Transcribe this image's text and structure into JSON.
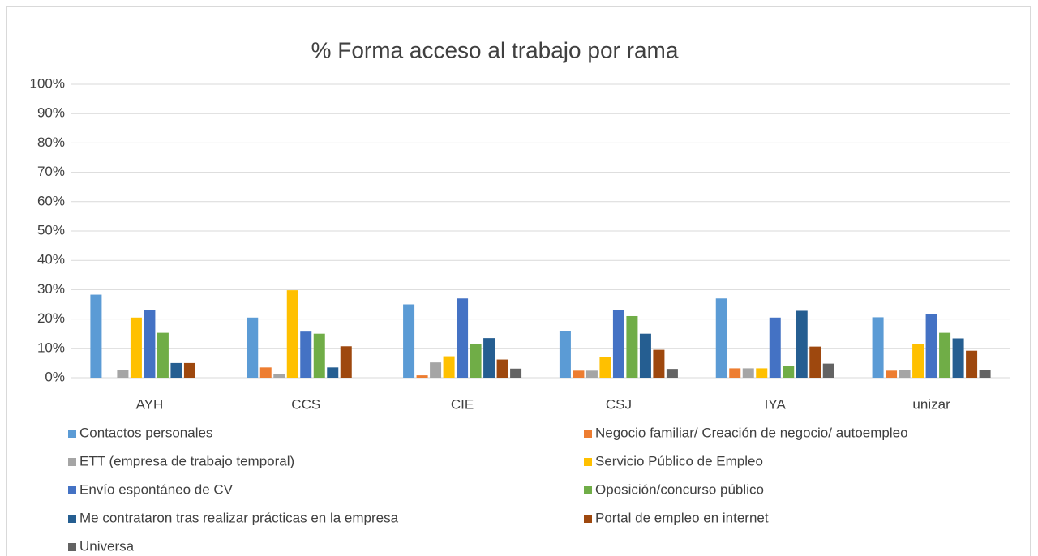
{
  "chart_data": {
    "type": "bar",
    "title": "% Forma acceso al trabajo por rama",
    "categories": [
      "AYH",
      "CCS",
      "CIE",
      "CSJ",
      "IYA",
      "unizar"
    ],
    "series": [
      {
        "name": "Contactos personales",
        "color": "#5b9bd5",
        "values": [
          28.3,
          20.5,
          25,
          16,
          27,
          20.6
        ]
      },
      {
        "name": "Negocio familiar/ Creación de negocio/ autoempleo",
        "color": "#ed7d31",
        "values": [
          0,
          3.5,
          0.8,
          2.4,
          3.2,
          2.4
        ]
      },
      {
        "name": "ETT (empresa de trabajo temporal)",
        "color": "#a5a5a5",
        "values": [
          2.5,
          1.3,
          5.2,
          2.4,
          3.2,
          2.6
        ]
      },
      {
        "name": "Servicio Público de Empleo",
        "color": "#ffc000",
        "values": [
          20.5,
          29.8,
          7.3,
          7,
          3.2,
          11.6
        ]
      },
      {
        "name": "Envío espontáneo de CV",
        "color": "#4472c4",
        "values": [
          23,
          15.7,
          27,
          23.2,
          20.5,
          21.7
        ]
      },
      {
        "name": "Oposición/concurso público",
        "color": "#70ad47",
        "values": [
          15.3,
          15,
          11.5,
          21,
          4,
          15.3
        ]
      },
      {
        "name": "Me contrataron tras realizar prácticas en la empresa",
        "color": "#255e91",
        "values": [
          5,
          3.5,
          13.5,
          15,
          22.8,
          13.4
        ]
      },
      {
        "name": "Portal de empleo en internet",
        "color": "#9e480e",
        "values": [
          5,
          10.7,
          6.2,
          9.5,
          10.6,
          9.2
        ]
      },
      {
        "name": "Universa",
        "color": "#636363",
        "values": [
          0,
          0,
          3.1,
          3,
          4.8,
          2.6
        ]
      }
    ],
    "ylim": [
      0,
      100
    ],
    "yticks": [
      {
        "value": 0,
        "label": "0%"
      },
      {
        "value": 10,
        "label": "10%"
      },
      {
        "value": 20,
        "label": "20%"
      },
      {
        "value": 30,
        "label": "30%"
      },
      {
        "value": 40,
        "label": "40%"
      },
      {
        "value": 50,
        "label": "50%"
      },
      {
        "value": 60,
        "label": "60%"
      },
      {
        "value": 70,
        "label": "70%"
      },
      {
        "value": 80,
        "label": "80%"
      },
      {
        "value": 90,
        "label": "90%"
      },
      {
        "value": 100,
        "label": "100%"
      }
    ],
    "grid": true
  }
}
